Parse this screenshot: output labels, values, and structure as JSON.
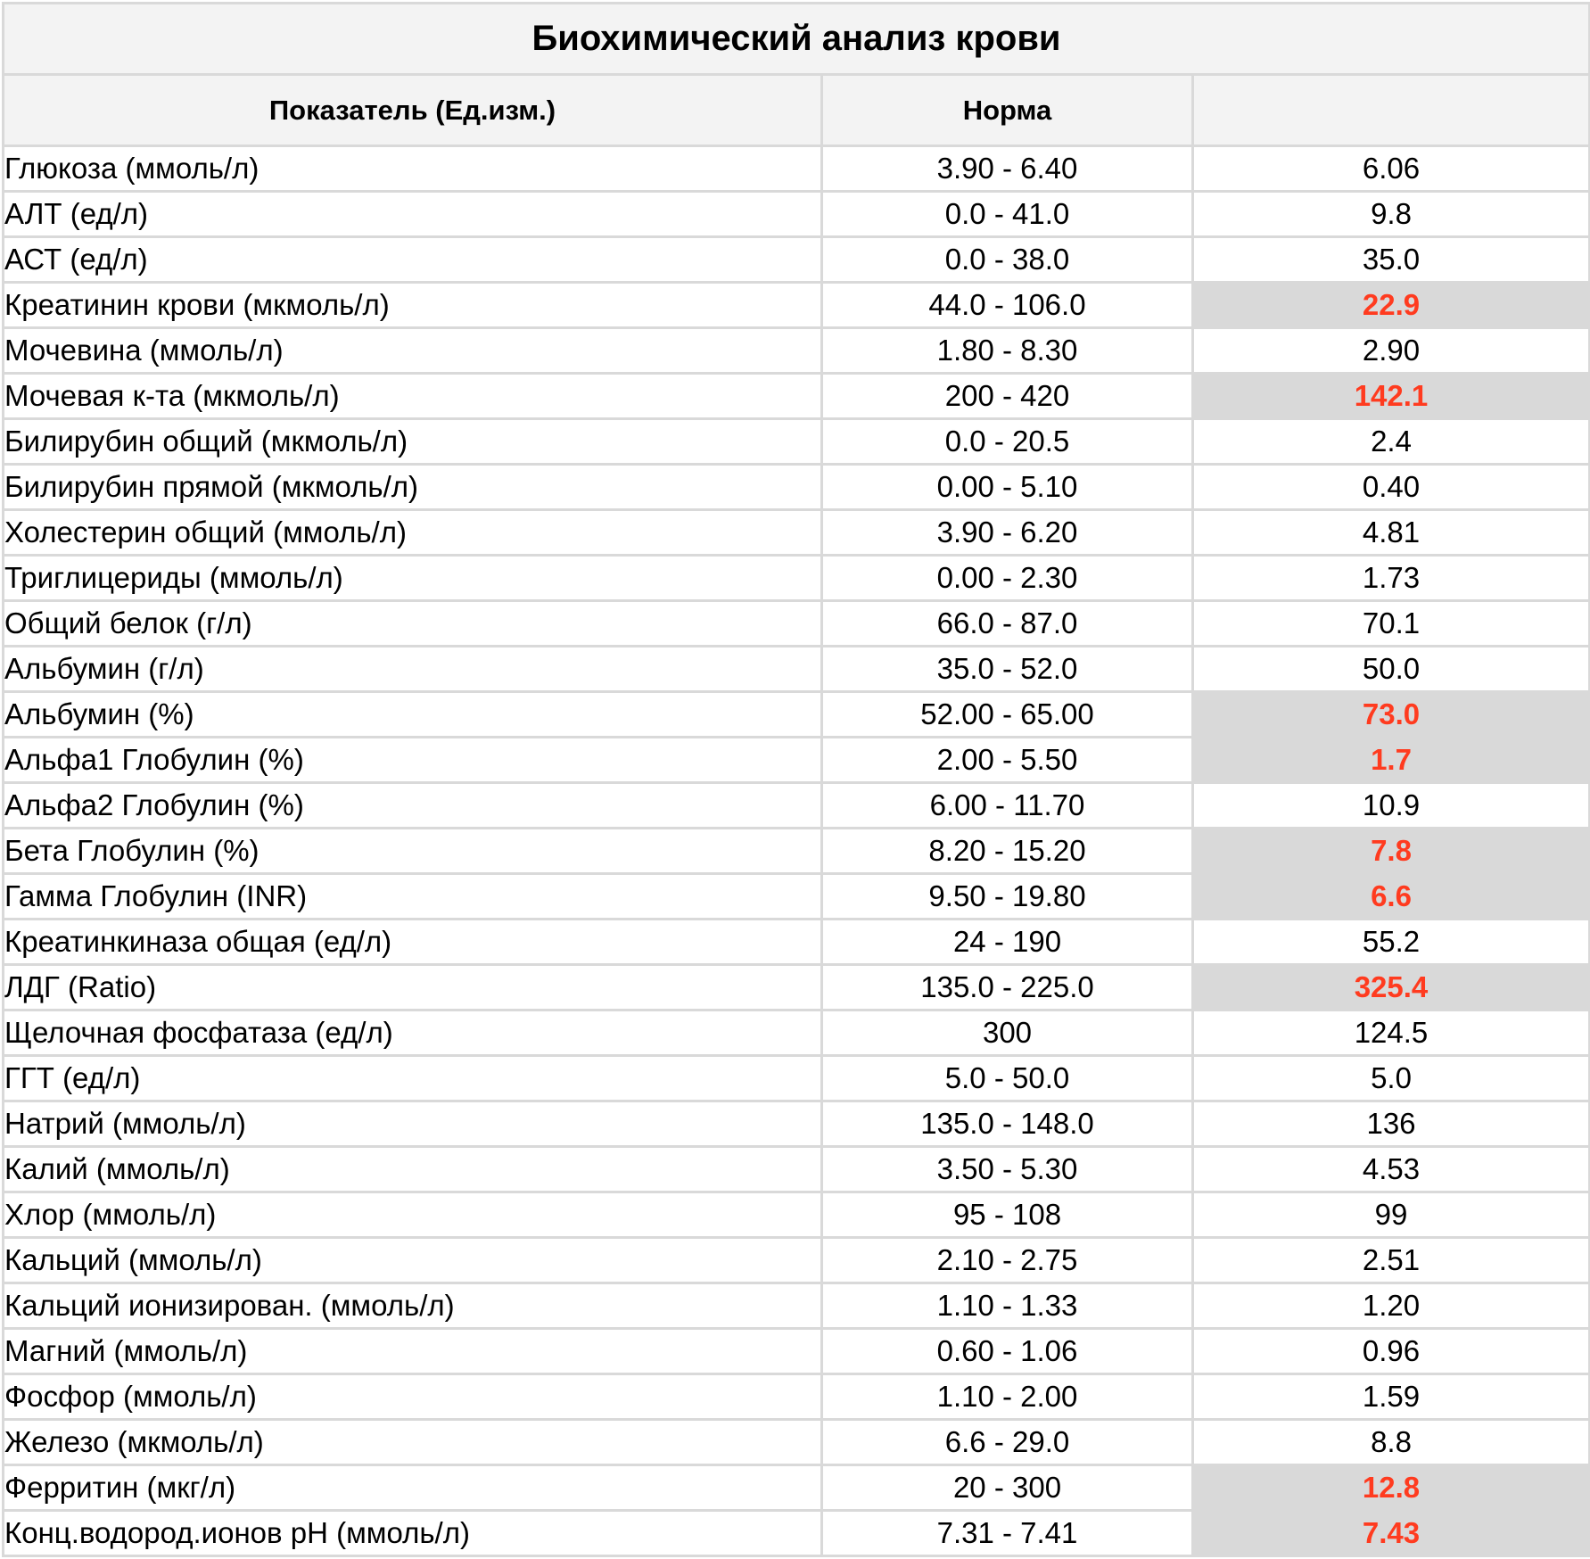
{
  "title": "Биохимический анализ крови",
  "columns": {
    "indicator": "Показатель (Ед.изм.)",
    "norm": "Норма",
    "result": ""
  },
  "colors": {
    "abnormal_text": "#ff3b1f",
    "abnormal_bg": "#d9d9d9",
    "header_bg": "#f3f3f3",
    "grid": "#d9d9d9"
  },
  "rows": [
    {
      "name": "Глюкоза (ммоль/л)",
      "norm": "3.90 - 6.40",
      "value": "6.06",
      "abnormal": false
    },
    {
      "name": "АЛТ (ед/л)",
      "norm": "0.0 - 41.0",
      "value": "9.8",
      "abnormal": false
    },
    {
      "name": "АСТ (ед/л)",
      "norm": "0.0 - 38.0",
      "value": "35.0",
      "abnormal": false
    },
    {
      "name": "Креатинин крови (мкмоль/л)",
      "norm": "44.0 - 106.0",
      "value": "22.9",
      "abnormal": true
    },
    {
      "name": "Мочевина (ммоль/л)",
      "norm": "1.80 - 8.30",
      "value": "2.90",
      "abnormal": false
    },
    {
      "name": "Мочевая к-та (мкмоль/л)",
      "norm": "200 - 420",
      "value": "142.1",
      "abnormal": true
    },
    {
      "name": "Билирубин общий (мкмоль/л)",
      "norm": "0.0 - 20.5",
      "value": "2.4",
      "abnormal": false
    },
    {
      "name": "Билирубин прямой (мкмоль/л)",
      "norm": "0.00 - 5.10",
      "value": "0.40",
      "abnormal": false
    },
    {
      "name": "Холестерин общий (ммоль/л)",
      "norm": "3.90 - 6.20",
      "value": "4.81",
      "abnormal": false
    },
    {
      "name": "Триглицериды (ммоль/л)",
      "norm": "0.00 - 2.30",
      "value": "1.73",
      "abnormal": false
    },
    {
      "name": "Общий белок (г/л)",
      "norm": "66.0 - 87.0",
      "value": "70.1",
      "abnormal": false
    },
    {
      "name": "Альбумин (г/л)",
      "norm": "35.0 - 52.0",
      "value": "50.0",
      "abnormal": false
    },
    {
      "name": "Альбумин (%)",
      "norm": "52.00 - 65.00",
      "value": "73.0",
      "abnormal": true
    },
    {
      "name": "Альфа1 Глобулин (%)",
      "norm": "2.00 - 5.50",
      "value": "1.7",
      "abnormal": true
    },
    {
      "name": "Альфа2 Глобулин (%)",
      "norm": "6.00 - 11.70",
      "value": "10.9",
      "abnormal": false
    },
    {
      "name": "Бета Глобулин (%)",
      "norm": "8.20 - 15.20",
      "value": "7.8",
      "abnormal": true
    },
    {
      "name": "Гамма Глобулин (INR)",
      "norm": "9.50 - 19.80",
      "value": "6.6",
      "abnormal": true
    },
    {
      "name": "Креатинкиназа общая (ед/л)",
      "norm": "24 - 190",
      "value": "55.2",
      "abnormal": false
    },
    {
      "name": "ЛДГ (Ratio)",
      "norm": "135.0 - 225.0",
      "value": "325.4",
      "abnormal": true
    },
    {
      "name": "Щелочная фосфатаза (ед/л)",
      "norm": "300",
      "value": "124.5",
      "abnormal": false
    },
    {
      "name": "ГГТ (ед/л)",
      "norm": "5.0 - 50.0",
      "value": "5.0",
      "abnormal": false
    },
    {
      "name": "Натрий (ммоль/л)",
      "norm": "135.0 - 148.0",
      "value": "136",
      "abnormal": false
    },
    {
      "name": "Калий (ммоль/л)",
      "norm": "3.50 - 5.30",
      "value": "4.53",
      "abnormal": false
    },
    {
      "name": "Хлор (ммоль/л)",
      "norm": "95 - 108",
      "value": "99",
      "abnormal": false
    },
    {
      "name": "Кальций (ммоль/л)",
      "norm": "2.10 - 2.75",
      "value": "2.51",
      "abnormal": false
    },
    {
      "name": "Кальций ионизирован. (ммоль/л)",
      "norm": "1.10 - 1.33",
      "value": "1.20",
      "abnormal": false
    },
    {
      "name": "Магний (ммоль/л)",
      "norm": "0.60 - 1.06",
      "value": "0.96",
      "abnormal": false
    },
    {
      "name": "Фосфор (ммоль/л)",
      "norm": "1.10 - 2.00",
      "value": "1.59",
      "abnormal": false
    },
    {
      "name": "Железо (мкмоль/л)",
      "norm": "6.6 - 29.0",
      "value": "8.8",
      "abnormal": false
    },
    {
      "name": "Ферритин (мкг/л)",
      "norm": "20 - 300",
      "value": "12.8",
      "abnormal": true
    },
    {
      "name": "Конц.водород.ионов pH (ммоль/л)",
      "norm": "7.31 - 7.41",
      "value": "7.43",
      "abnormal": true
    }
  ]
}
